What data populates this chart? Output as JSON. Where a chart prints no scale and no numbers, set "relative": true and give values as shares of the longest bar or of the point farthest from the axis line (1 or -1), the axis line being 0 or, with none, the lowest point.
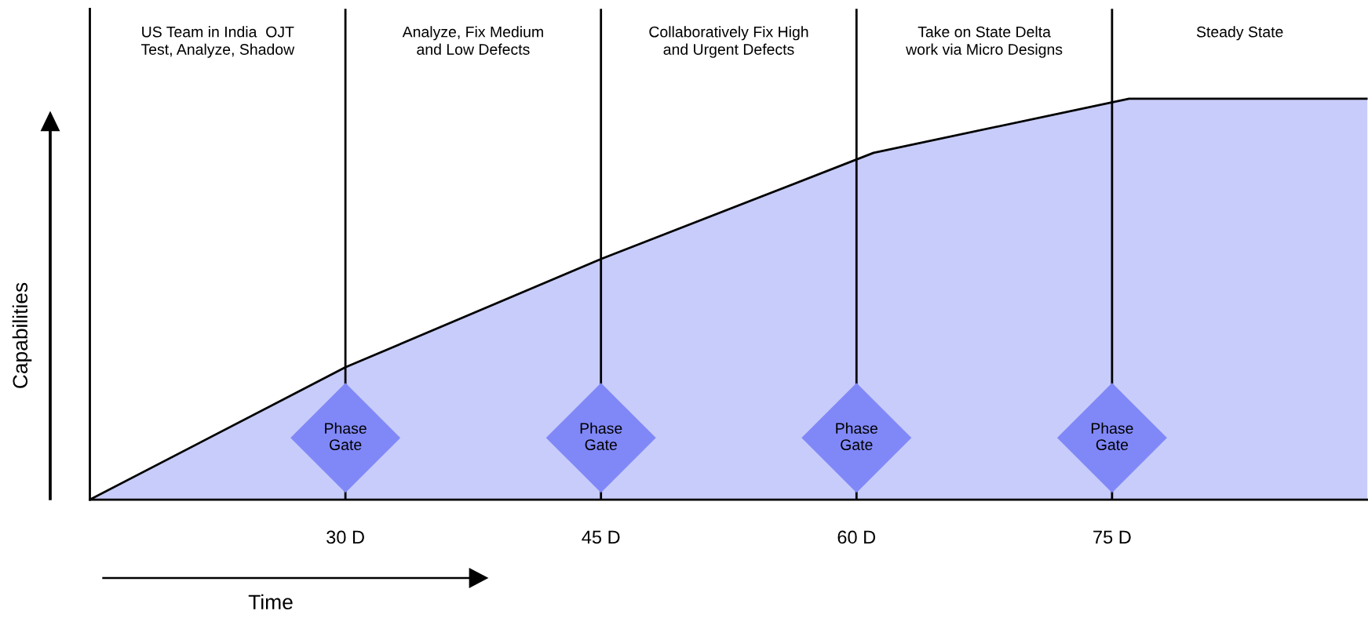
{
  "chart_data": {
    "type": "area",
    "relative": true,
    "xlabel": "Time",
    "ylabel": "Capabilities",
    "x": [
      15,
      30,
      45,
      61,
      76,
      90
    ],
    "series": [
      {
        "color": "#c8ccfa",
        "values": [
          0,
          0.33,
          0.6,
          0.865,
          1,
          1
        ]
      }
    ],
    "xlim": [
      15,
      90
    ],
    "xticks": [
      {
        "value": 30,
        "label": "30 D"
      },
      {
        "value": 45,
        "label": "45 D"
      },
      {
        "value": 60,
        "label": "60 D"
      },
      {
        "value": 75,
        "label": "75 D"
      }
    ],
    "ref_lines": [
      {
        "axis": "x",
        "value": 30,
        "label": "Phase\nGate",
        "color": "#000000"
      },
      {
        "axis": "x",
        "value": 45,
        "label": "Phase\nGate",
        "color": "#000000"
      },
      {
        "axis": "x",
        "value": 60,
        "label": "Phase\nGate",
        "color": "#000000"
      },
      {
        "axis": "x",
        "value": 75,
        "label": "Phase\nGate",
        "color": "#000000"
      }
    ],
    "annotations": [
      "US Team in India  OJT\nTest, Analyze, Shadow",
      "Analyze, Fix Medium\nand Low Defects",
      "Collaboratively Fix High\nand Urgent Defects",
      "Take on State Delta\nwork via Micro Designs",
      "Steady State"
    ],
    "grid": false,
    "legend": false
  }
}
